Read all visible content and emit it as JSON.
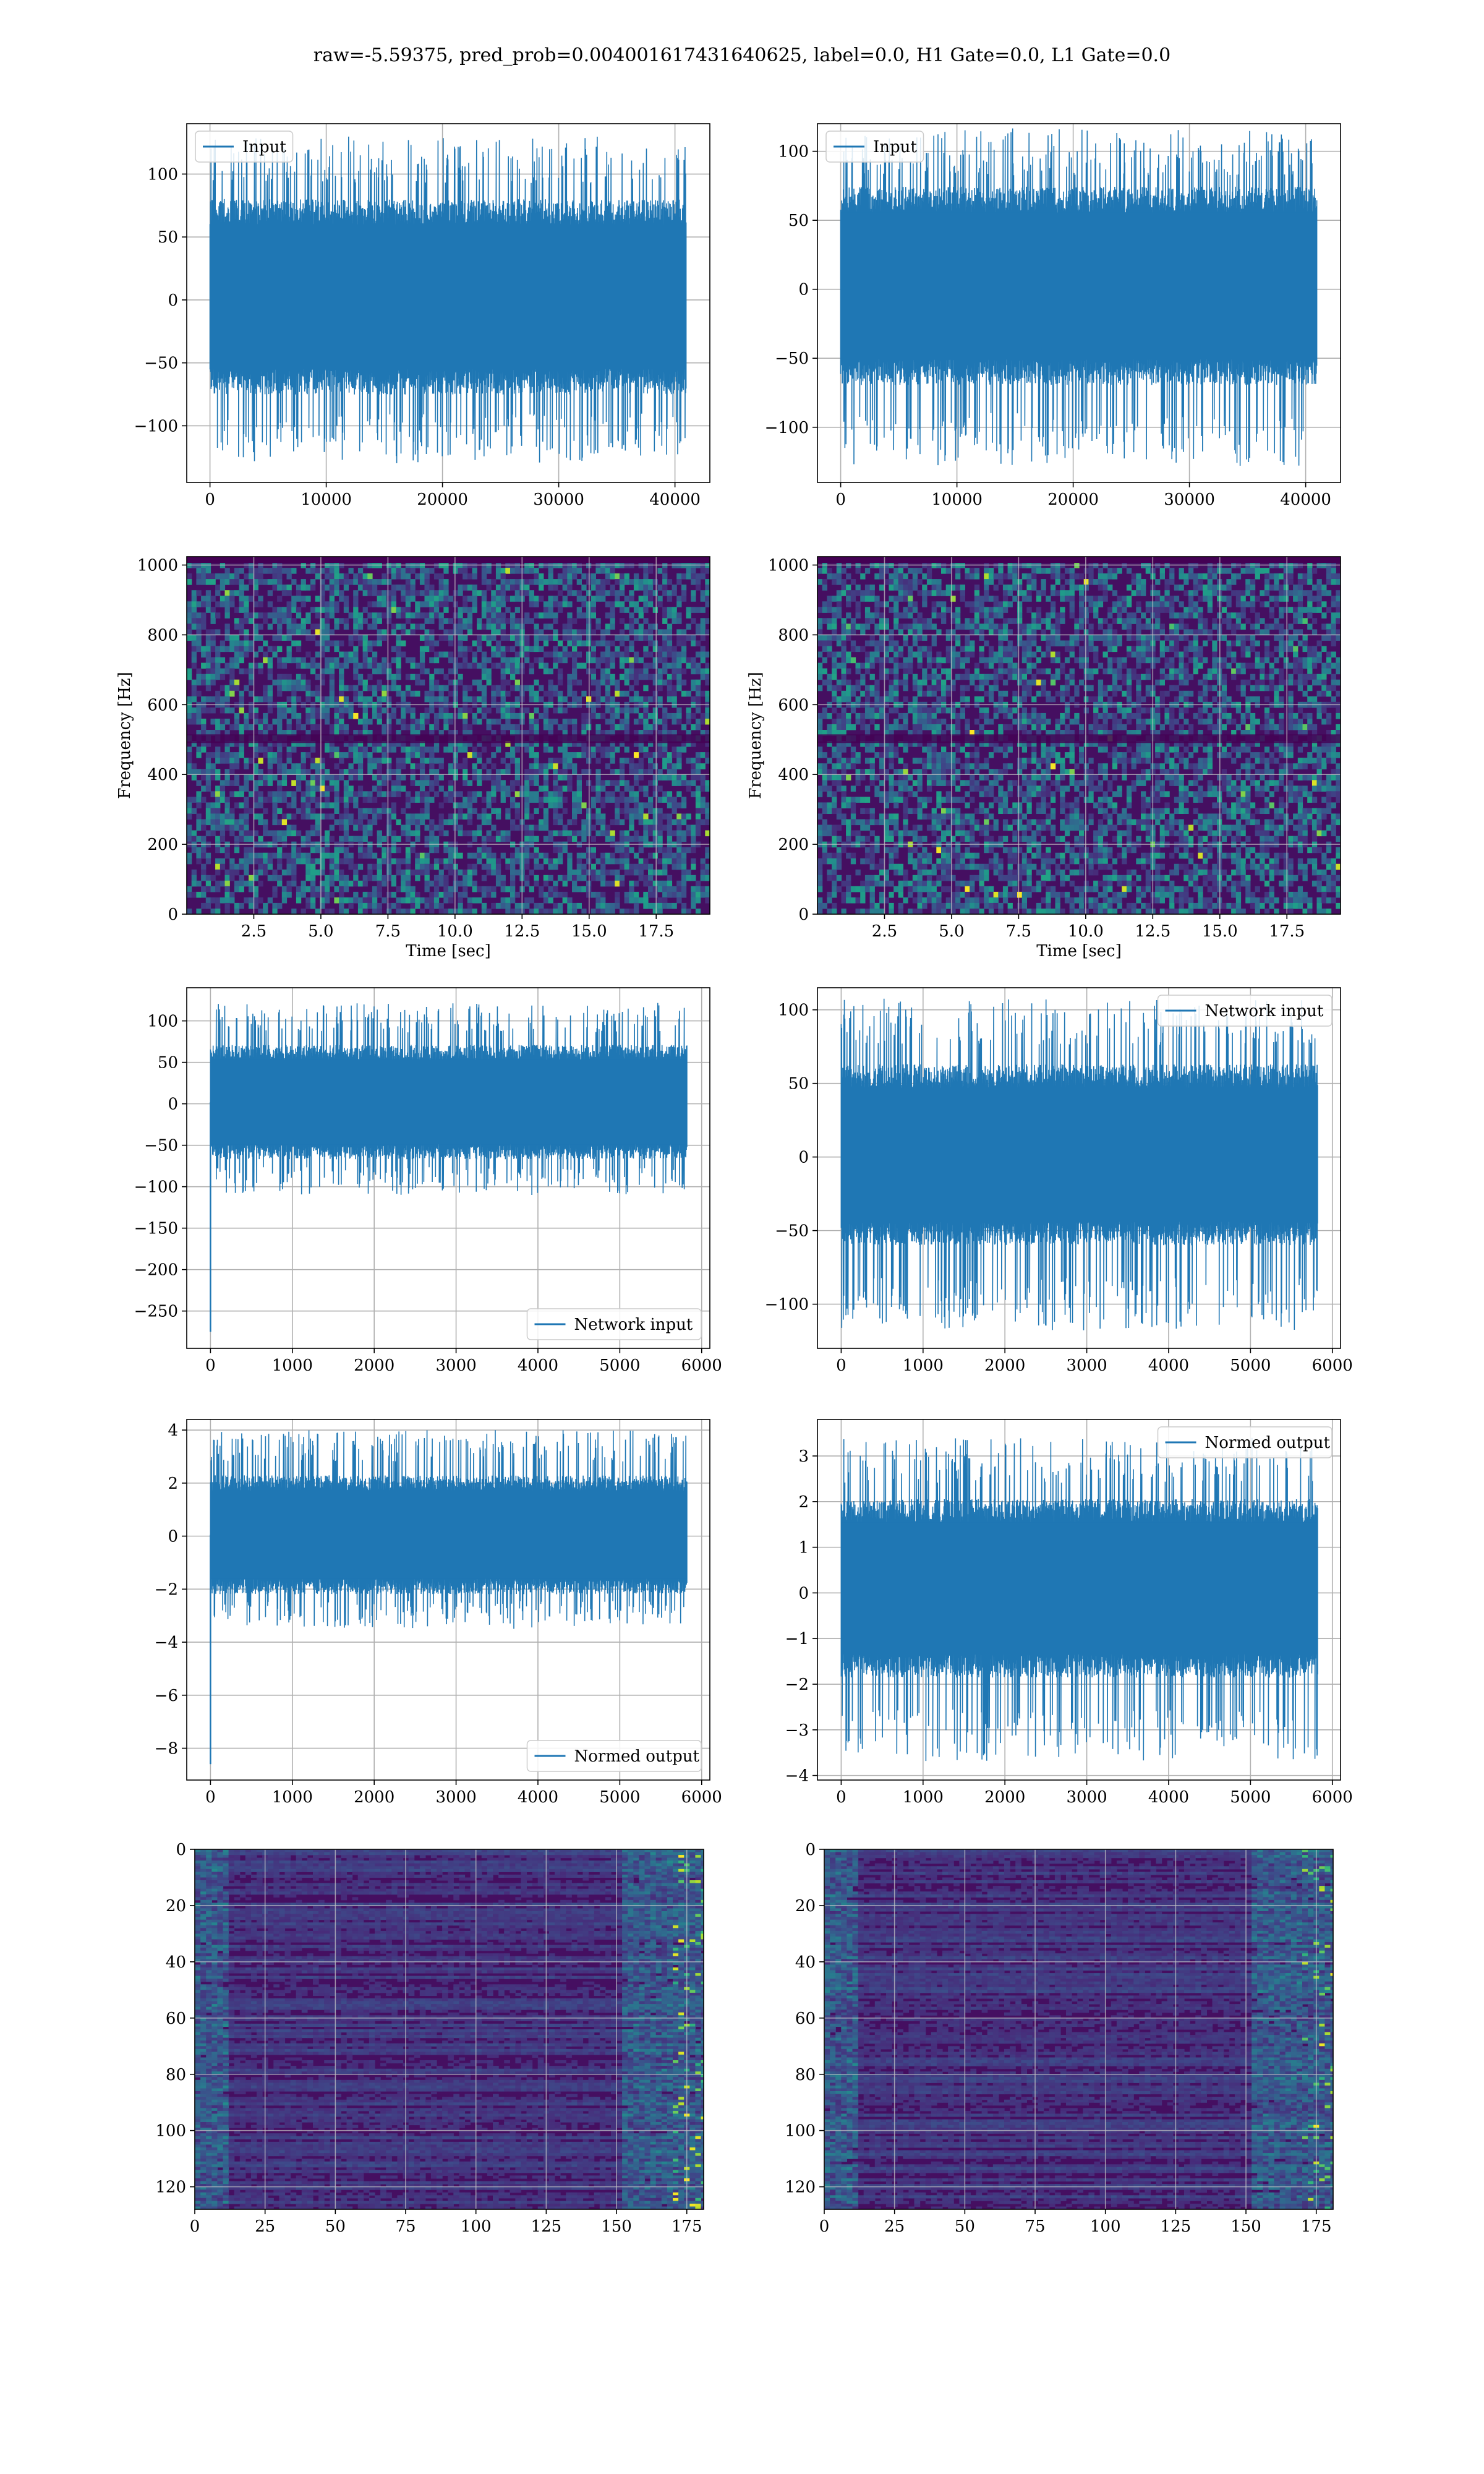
{
  "figure": {
    "title": "raw=-5.59375, pred_prob=0.004001617431640625, label=0.0, H1 Gate=0.0, L1 Gate=0.0"
  },
  "colors": {
    "series": "#1f77b4",
    "grid": "#b0b0b0"
  },
  "chart_data": [
    {
      "id": "input-h1",
      "type": "line",
      "legend": [
        "Input"
      ],
      "legend_loc": "upper left",
      "xlim": [
        -2000,
        43000
      ],
      "ylim": [
        -145,
        140
      ],
      "xticks": [
        0,
        10000,
        20000,
        30000,
        40000
      ],
      "xtick_labels": [
        "0",
        "10000",
        "20000",
        "30000",
        "40000"
      ],
      "yticks": [
        -100,
        -50,
        0,
        50,
        100
      ],
      "ytick_labels": [
        "−100",
        "−50",
        "0",
        "50",
        "100"
      ],
      "series": [
        {
          "name": "Input",
          "x_range": [
            0,
            40960
          ],
          "band": [
            -65,
            70
          ],
          "extremes": [
            -130,
            130
          ]
        }
      ],
      "grid": true,
      "xlabel": "",
      "ylabel": ""
    },
    {
      "id": "input-l1",
      "type": "line",
      "legend": [
        "Input"
      ],
      "legend_loc": "upper left",
      "xlim": [
        -2000,
        43000
      ],
      "ylim": [
        -140,
        120
      ],
      "xticks": [
        0,
        10000,
        20000,
        30000,
        40000
      ],
      "xtick_labels": [
        "0",
        "10000",
        "20000",
        "30000",
        "40000"
      ],
      "yticks": [
        -100,
        -50,
        0,
        50,
        100
      ],
      "ytick_labels": [
        "−100",
        "−50",
        "0",
        "50",
        "100"
      ],
      "series": [
        {
          "name": "Input",
          "x_range": [
            0,
            40960
          ],
          "band": [
            -60,
            65
          ],
          "extremes": [
            -128,
            117
          ]
        }
      ],
      "grid": true,
      "xlabel": "",
      "ylabel": ""
    },
    {
      "id": "spectrogram-h1",
      "type": "heatmap",
      "xlim": [
        0,
        19.5
      ],
      "ylim": [
        0,
        1024
      ],
      "xticks": [
        2.5,
        5.0,
        7.5,
        10.0,
        12.5,
        15.0,
        17.5
      ],
      "xtick_labels": [
        "2.5",
        "5.0",
        "7.5",
        "10.0",
        "12.5",
        "15.0",
        "17.5"
      ],
      "yticks": [
        0,
        200,
        400,
        600,
        800,
        1000
      ],
      "ytick_labels": [
        "0",
        "200",
        "400",
        "600",
        "800",
        "1000"
      ],
      "xlabel": "Time [sec]",
      "ylabel": "Frequency [Hz]",
      "colormap": "viridis",
      "grid": true
    },
    {
      "id": "spectrogram-l1",
      "type": "heatmap",
      "xlim": [
        0,
        19.5
      ],
      "ylim": [
        0,
        1024
      ],
      "xticks": [
        2.5,
        5.0,
        7.5,
        10.0,
        12.5,
        15.0,
        17.5
      ],
      "xtick_labels": [
        "2.5",
        "5.0",
        "7.5",
        "10.0",
        "12.5",
        "15.0",
        "17.5"
      ],
      "yticks": [
        0,
        200,
        400,
        600,
        800,
        1000
      ],
      "ytick_labels": [
        "0",
        "200",
        "400",
        "600",
        "800",
        "1000"
      ],
      "xlabel": "Time [sec]",
      "ylabel": "Frequency [Hz]",
      "colormap": "viridis",
      "grid": true
    },
    {
      "id": "network-input-h1",
      "type": "line",
      "legend": [
        "Network input"
      ],
      "legend_loc": "lower right",
      "xlim": [
        -290,
        6100
      ],
      "ylim": [
        -295,
        140
      ],
      "xticks": [
        0,
        1000,
        2000,
        3000,
        4000,
        5000,
        6000
      ],
      "xtick_labels": [
        "0",
        "1000",
        "2000",
        "3000",
        "4000",
        "5000",
        "6000"
      ],
      "yticks": [
        -250,
        -200,
        -150,
        -100,
        -50,
        0,
        50,
        100
      ],
      "ytick_labels": [
        "−250",
        "−200",
        "−150",
        "−100",
        "−50",
        "0",
        "50",
        "100"
      ],
      "series": [
        {
          "name": "Network input",
          "x_range": [
            0,
            5820
          ],
          "band": [
            -58,
            62
          ],
          "extremes": [
            -110,
            122
          ],
          "spike": {
            "x": 0,
            "y": -275
          }
        }
      ],
      "grid": true,
      "xlabel": "",
      "ylabel": ""
    },
    {
      "id": "network-input-l1",
      "type": "line",
      "legend": [
        "Network input"
      ],
      "legend_loc": "upper right",
      "xlim": [
        -290,
        6100
      ],
      "ylim": [
        -130,
        115
      ],
      "xticks": [
        0,
        1000,
        2000,
        3000,
        4000,
        5000,
        6000
      ],
      "xtick_labels": [
        "0",
        "1000",
        "2000",
        "3000",
        "4000",
        "5000",
        "6000"
      ],
      "yticks": [
        -100,
        -50,
        0,
        50,
        100
      ],
      "ytick_labels": [
        "−100",
        "−50",
        "0",
        "50",
        "100"
      ],
      "series": [
        {
          "name": "Network input",
          "x_range": [
            0,
            5820
          ],
          "band": [
            -52,
            55
          ],
          "extremes": [
            -118,
            108
          ]
        }
      ],
      "grid": true,
      "xlabel": "",
      "ylabel": ""
    },
    {
      "id": "normed-output-h1",
      "type": "line",
      "legend": [
        "Normed output"
      ],
      "legend_loc": "lower right",
      "xlim": [
        -290,
        6100
      ],
      "ylim": [
        -9.2,
        4.4
      ],
      "xticks": [
        0,
        1000,
        2000,
        3000,
        4000,
        5000,
        6000
      ],
      "xtick_labels": [
        "0",
        "1000",
        "2000",
        "3000",
        "4000",
        "5000",
        "6000"
      ],
      "yticks": [
        -8,
        -6,
        -4,
        -2,
        0,
        2,
        4
      ],
      "ytick_labels": [
        "−8",
        "−6",
        "−4",
        "−2",
        "0",
        "2",
        "4"
      ],
      "series": [
        {
          "name": "Normed output",
          "x_range": [
            0,
            5820
          ],
          "band": [
            -1.9,
            2.0
          ],
          "extremes": [
            -3.5,
            4.0
          ],
          "spike": {
            "x": 0,
            "y": -8.6
          }
        }
      ],
      "grid": true,
      "xlabel": "",
      "ylabel": ""
    },
    {
      "id": "normed-output-l1",
      "type": "line",
      "legend": [
        "Normed output"
      ],
      "legend_loc": "upper right",
      "xlim": [
        -290,
        6100
      ],
      "ylim": [
        -4.1,
        3.8
      ],
      "xticks": [
        0,
        1000,
        2000,
        3000,
        4000,
        5000,
        6000
      ],
      "xtick_labels": [
        "0",
        "1000",
        "2000",
        "3000",
        "4000",
        "5000",
        "6000"
      ],
      "yticks": [
        -4,
        -3,
        -2,
        -1,
        0,
        1,
        2,
        3
      ],
      "ytick_labels": [
        "−4",
        "−3",
        "−2",
        "−1",
        "0",
        "1",
        "2",
        "3"
      ],
      "series": [
        {
          "name": "Normed output",
          "x_range": [
            0,
            5820
          ],
          "band": [
            -1.6,
            1.8
          ],
          "extremes": [
            -3.7,
            3.4
          ]
        }
      ],
      "grid": true,
      "xlabel": "",
      "ylabel": ""
    },
    {
      "id": "feature-map-h1",
      "type": "heatmap",
      "xlim": [
        0,
        181
      ],
      "ylim": [
        0,
        128
      ],
      "y_inverted": true,
      "xticks": [
        0,
        25,
        50,
        75,
        100,
        125,
        150,
        175
      ],
      "xtick_labels": [
        "0",
        "25",
        "50",
        "75",
        "100",
        "125",
        "150",
        "175"
      ],
      "yticks": [
        0,
        20,
        40,
        60,
        80,
        100,
        120
      ],
      "ytick_labels": [
        "0",
        "20",
        "40",
        "60",
        "80",
        "100",
        "120"
      ],
      "xlabel": "",
      "ylabel": "",
      "colormap": "viridis",
      "grid": true
    },
    {
      "id": "feature-map-l1",
      "type": "heatmap",
      "xlim": [
        0,
        181
      ],
      "ylim": [
        0,
        128
      ],
      "y_inverted": true,
      "xticks": [
        0,
        25,
        50,
        75,
        100,
        125,
        150,
        175
      ],
      "xtick_labels": [
        "0",
        "25",
        "50",
        "75",
        "100",
        "125",
        "150",
        "175"
      ],
      "yticks": [
        0,
        20,
        40,
        60,
        80,
        100,
        120
      ],
      "ytick_labels": [
        "0",
        "20",
        "40",
        "60",
        "80",
        "100",
        "120"
      ],
      "xlabel": "",
      "ylabel": "",
      "colormap": "viridis",
      "grid": true
    }
  ]
}
